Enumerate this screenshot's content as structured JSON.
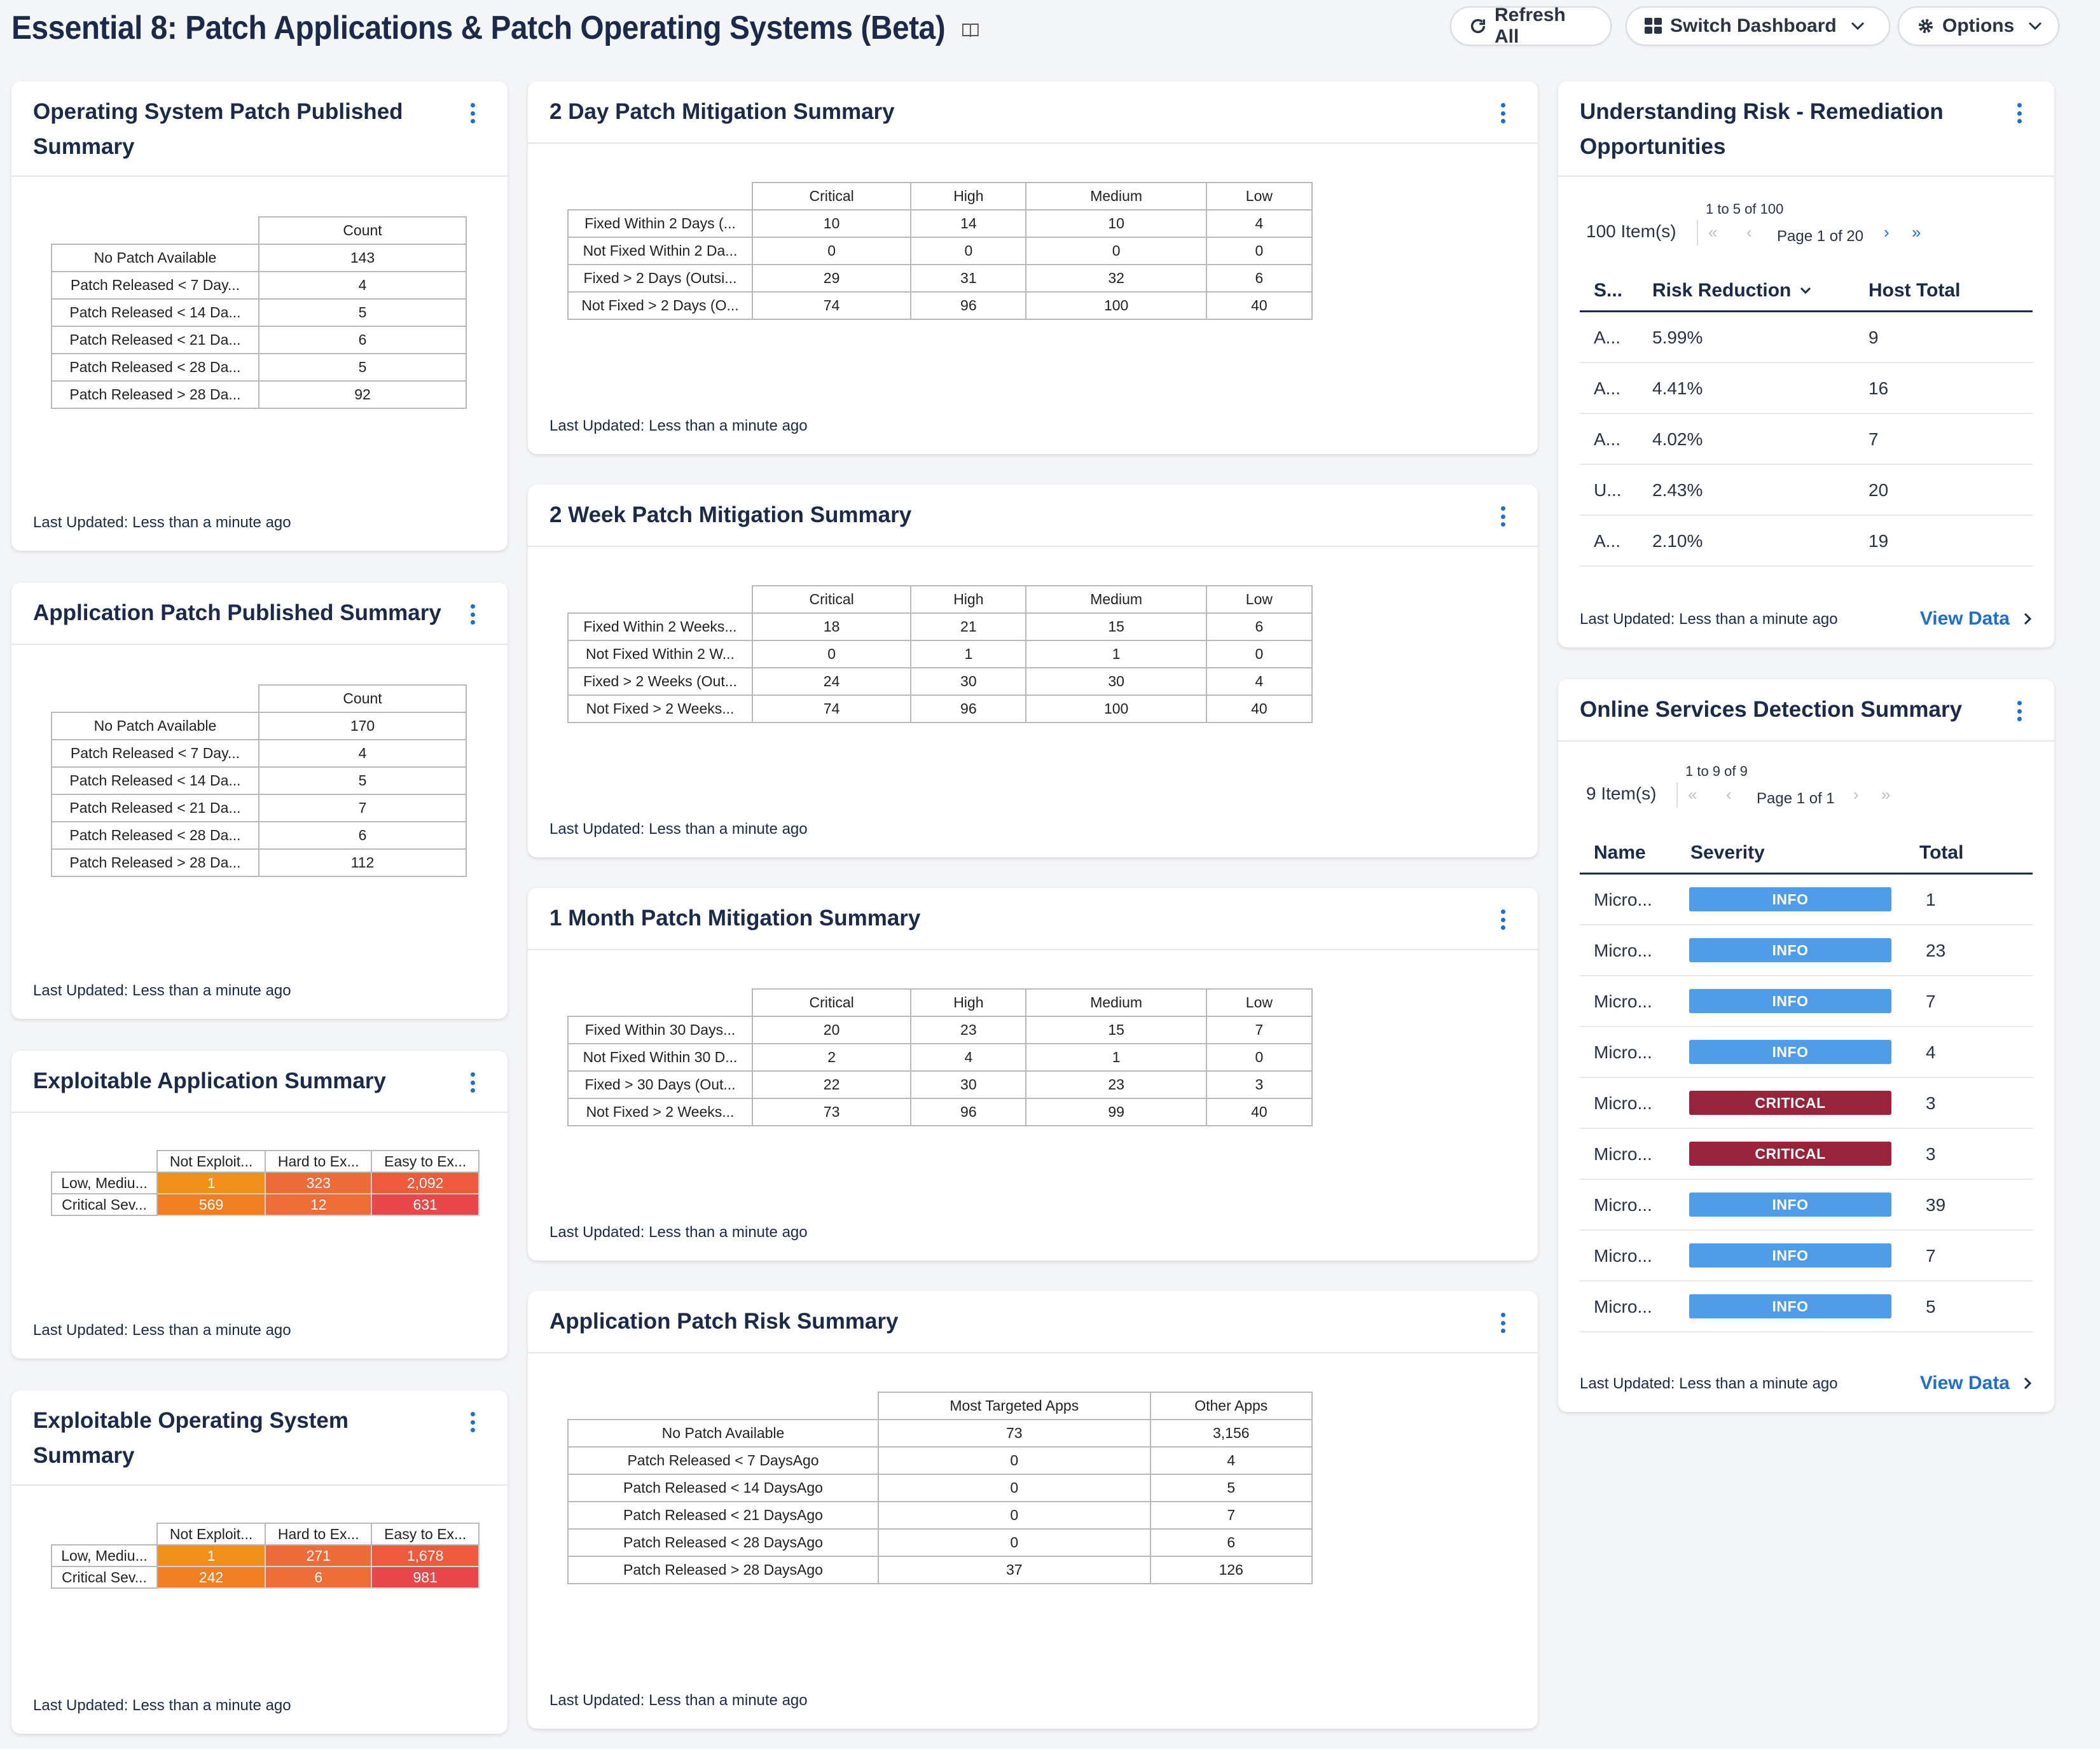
{
  "header": {
    "title": "Essential 8: Patch Applications & Patch Operating Systems (Beta)",
    "refresh_label": "Refresh All",
    "switch_label": "Switch Dashboard",
    "options_label": "Options"
  },
  "common": {
    "last_updated": "Last Updated: Less than a minute ago",
    "view_data": "View Data"
  },
  "colors": {
    "accent": "#1f6fd1",
    "info": "#4f9de8",
    "critical": "#98233a",
    "heat_orange": "#f0901a",
    "heat_orange2": "#ee6b3a",
    "heat_red": "#e8484a"
  },
  "os_patch_published": {
    "title": "Operating System Patch Published Summary",
    "column": "Count",
    "rows": [
      {
        "label": "No Patch Available",
        "value": "143"
      },
      {
        "label": "Patch Released < 7 Day...",
        "value": "4"
      },
      {
        "label": "Patch Released < 14 Da...",
        "value": "5"
      },
      {
        "label": "Patch Released < 21 Da...",
        "value": "6"
      },
      {
        "label": "Patch Released < 28 Da...",
        "value": "5"
      },
      {
        "label": "Patch Released > 28 Da...",
        "value": "92"
      }
    ]
  },
  "app_patch_published": {
    "title": "Application Patch Published Summary",
    "column": "Count",
    "rows": [
      {
        "label": "No Patch Available",
        "value": "170"
      },
      {
        "label": "Patch Released < 7 Day...",
        "value": "4"
      },
      {
        "label": "Patch Released < 14 Da...",
        "value": "5"
      },
      {
        "label": "Patch Released < 21 Da...",
        "value": "7"
      },
      {
        "label": "Patch Released < 28 Da...",
        "value": "6"
      },
      {
        "label": "Patch Released > 28 Da...",
        "value": "112"
      }
    ]
  },
  "exploitable_app": {
    "title": "Exploitable Application Summary",
    "columns": [
      "Not Exploit...",
      "Hard to Ex...",
      "Easy to Ex..."
    ],
    "rows": [
      {
        "label": "Low, Mediu...",
        "values": [
          "1",
          "323",
          "2,092"
        ]
      },
      {
        "label": "Critical Sev...",
        "values": [
          "569",
          "12",
          "631"
        ]
      }
    ]
  },
  "exploitable_os": {
    "title": "Exploitable Operating System Summary",
    "columns": [
      "Not Exploit...",
      "Hard to Ex...",
      "Easy to Ex..."
    ],
    "rows": [
      {
        "label": "Low, Mediu...",
        "values": [
          "1",
          "271",
          "1,678"
        ]
      },
      {
        "label": "Critical Sev...",
        "values": [
          "242",
          "6",
          "981"
        ]
      }
    ]
  },
  "two_day": {
    "title": "2 Day Patch Mitigation Summary",
    "columns": [
      "Critical",
      "High",
      "Medium",
      "Low"
    ],
    "rows": [
      {
        "label": "Fixed Within 2 Days (...",
        "values": [
          "10",
          "14",
          "10",
          "4"
        ]
      },
      {
        "label": "Not Fixed Within 2 Da...",
        "values": [
          "0",
          "0",
          "0",
          "0"
        ]
      },
      {
        "label": "Fixed > 2 Days (Outsi...",
        "values": [
          "29",
          "31",
          "32",
          "6"
        ]
      },
      {
        "label": "Not Fixed > 2 Days (O...",
        "values": [
          "74",
          "96",
          "100",
          "40"
        ]
      }
    ]
  },
  "two_week": {
    "title": "2 Week Patch Mitigation Summary",
    "columns": [
      "Critical",
      "High",
      "Medium",
      "Low"
    ],
    "rows": [
      {
        "label": "Fixed Within 2 Weeks...",
        "values": [
          "18",
          "21",
          "15",
          "6"
        ]
      },
      {
        "label": "Not Fixed Within 2 W...",
        "values": [
          "0",
          "1",
          "1",
          "0"
        ]
      },
      {
        "label": "Fixed > 2 Weeks (Out...",
        "values": [
          "24",
          "30",
          "30",
          "4"
        ]
      },
      {
        "label": "Not Fixed > 2 Weeks...",
        "values": [
          "74",
          "96",
          "100",
          "40"
        ]
      }
    ]
  },
  "one_month": {
    "title": "1 Month Patch Mitigation Summary",
    "columns": [
      "Critical",
      "High",
      "Medium",
      "Low"
    ],
    "rows": [
      {
        "label": "Fixed Within 30 Days...",
        "values": [
          "20",
          "23",
          "15",
          "7"
        ]
      },
      {
        "label": "Not Fixed Within 30 D...",
        "values": [
          "2",
          "4",
          "1",
          "0"
        ]
      },
      {
        "label": "Fixed > 30 Days (Out...",
        "values": [
          "22",
          "30",
          "23",
          "3"
        ]
      },
      {
        "label": "Not Fixed > 2 Weeks...",
        "values": [
          "73",
          "96",
          "99",
          "40"
        ]
      }
    ]
  },
  "app_risk": {
    "title": "Application Patch Risk Summary",
    "columns": [
      "Most Targeted Apps",
      "Other Apps"
    ],
    "rows": [
      {
        "label": "No Patch Available",
        "values": [
          "73",
          "3,156"
        ]
      },
      {
        "label": "Patch Released < 7 DaysAgo",
        "values": [
          "0",
          "4"
        ]
      },
      {
        "label": "Patch Released < 14 DaysAgo",
        "values": [
          "0",
          "5"
        ]
      },
      {
        "label": "Patch Released < 21 DaysAgo",
        "values": [
          "0",
          "7"
        ]
      },
      {
        "label": "Patch Released < 28 DaysAgo",
        "values": [
          "0",
          "6"
        ]
      },
      {
        "label": "Patch Released > 28 DaysAgo",
        "values": [
          "37",
          "126"
        ]
      }
    ]
  },
  "risk_remediation": {
    "title": "Understanding Risk - Remediation Opportunities",
    "items": "100 Item(s)",
    "range": "1 to 5 of 100",
    "page": "Page 1 of 20",
    "columns": [
      "S...",
      "Risk Reduction",
      "Host Total"
    ],
    "rows": [
      {
        "s": "A...",
        "risk": "5.99%",
        "hosts": "9"
      },
      {
        "s": "A...",
        "risk": "4.41%",
        "hosts": "16"
      },
      {
        "s": "A...",
        "risk": "4.02%",
        "hosts": "7"
      },
      {
        "s": "U...",
        "risk": "2.43%",
        "hosts": "20"
      },
      {
        "s": "A...",
        "risk": "2.10%",
        "hosts": "19"
      }
    ]
  },
  "online_services": {
    "title": "Online Services Detection Summary",
    "items": "9 Item(s)",
    "range": "1 to 9 of 9",
    "page": "Page 1 of 1",
    "columns": [
      "Name",
      "Severity",
      "Total"
    ],
    "rows": [
      {
        "name": "Micro...",
        "severity": "INFO",
        "total": "1"
      },
      {
        "name": "Micro...",
        "severity": "INFO",
        "total": "23"
      },
      {
        "name": "Micro...",
        "severity": "INFO",
        "total": "7"
      },
      {
        "name": "Micro...",
        "severity": "INFO",
        "total": "4"
      },
      {
        "name": "Micro...",
        "severity": "CRITICAL",
        "total": "3"
      },
      {
        "name": "Micro...",
        "severity": "CRITICAL",
        "total": "3"
      },
      {
        "name": "Micro...",
        "severity": "INFO",
        "total": "39"
      },
      {
        "name": "Micro...",
        "severity": "INFO",
        "total": "7"
      },
      {
        "name": "Micro...",
        "severity": "INFO",
        "total": "5"
      }
    ]
  }
}
